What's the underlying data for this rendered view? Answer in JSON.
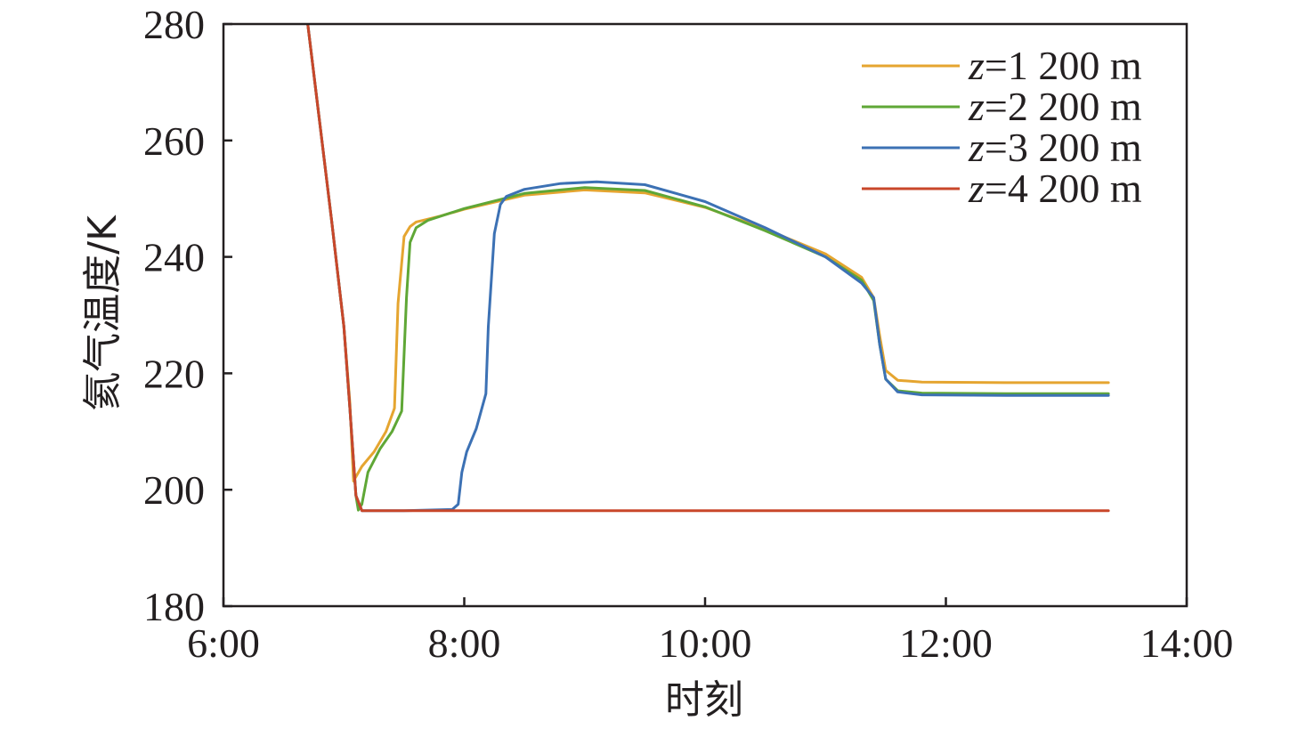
{
  "chart_data": {
    "type": "line",
    "xlabel": "时刻",
    "ylabel": "氦气温度/K",
    "xlim": [
      6,
      14
    ],
    "ylim": [
      180,
      280
    ],
    "x_ticks": [
      6,
      8,
      10,
      12,
      14
    ],
    "x_tick_labels": [
      "6:00",
      "8:00",
      "10:00",
      "12:00",
      "14:00"
    ],
    "y_ticks": [
      180,
      200,
      220,
      240,
      260,
      280
    ],
    "y_tick_labels": [
      "180",
      "200",
      "220",
      "240",
      "260",
      "280"
    ],
    "grid": false,
    "legend_position": "top-right",
    "series": [
      {
        "name_var": "z",
        "name_rest": "=1 200 m",
        "color": "#e5a530",
        "x": [
          6.7,
          6.8,
          6.9,
          7.0,
          7.05,
          7.08,
          7.15,
          7.25,
          7.35,
          7.42,
          7.45,
          7.5,
          7.55,
          7.6,
          7.8,
          8.0,
          8.5,
          9.0,
          9.5,
          10.0,
          10.5,
          11.0,
          11.3,
          11.4,
          11.45,
          11.5,
          11.6,
          11.8,
          12.5,
          13.35
        ],
        "y": [
          280,
          263,
          246,
          228,
          215,
          201.5,
          204,
          206.5,
          210,
          214,
          232,
          243.5,
          245.2,
          246,
          247,
          248.2,
          250.6,
          251.5,
          251,
          248.5,
          244.8,
          240.5,
          236.5,
          233,
          226.5,
          220.5,
          218.8,
          218.5,
          218.4,
          218.4
        ]
      },
      {
        "name_var": "z",
        "name_rest": "=2 200 m",
        "color": "#5fa736",
        "x": [
          6.7,
          6.8,
          6.9,
          7.0,
          7.05,
          7.1,
          7.12,
          7.15,
          7.2,
          7.3,
          7.4,
          7.48,
          7.52,
          7.55,
          7.6,
          7.7,
          8.0,
          8.5,
          9.0,
          9.5,
          10.0,
          10.5,
          11.0,
          11.3,
          11.4,
          11.45,
          11.5,
          11.6,
          11.8,
          12.5,
          13.35
        ],
        "y": [
          280,
          263,
          246,
          228,
          214,
          199,
          196.5,
          197.5,
          203,
          207,
          210,
          213.5,
          233,
          242.5,
          245,
          246.3,
          248.3,
          250.9,
          251.9,
          251.4,
          248.6,
          244.5,
          240,
          236,
          232.5,
          225,
          219,
          217,
          216.6,
          216.5,
          216.5
        ]
      },
      {
        "name_var": "z",
        "name_rest": "=3 200 m",
        "color": "#3c71b4",
        "x": [
          6.7,
          6.8,
          6.9,
          7.0,
          7.05,
          7.1,
          7.15,
          7.5,
          7.9,
          7.95,
          7.98,
          8.02,
          8.1,
          8.18,
          8.2,
          8.25,
          8.3,
          8.35,
          8.5,
          8.8,
          9.1,
          9.5,
          10.0,
          10.5,
          11.0,
          11.3,
          11.4,
          11.45,
          11.5,
          11.6,
          11.8,
          12.5,
          13.35
        ],
        "y": [
          280,
          263,
          246,
          228,
          214,
          199,
          196.4,
          196.4,
          196.6,
          197.5,
          203,
          206.5,
          210.5,
          216.5,
          228,
          244,
          249,
          250.4,
          251.6,
          252.6,
          252.9,
          252.4,
          249.5,
          245,
          240,
          235.5,
          233,
          225,
          219,
          216.8,
          216.3,
          216.2,
          216.2
        ]
      },
      {
        "name_var": "z",
        "name_rest": "=4 200 m",
        "color": "#c9472a",
        "x": [
          6.7,
          6.8,
          6.9,
          7.0,
          7.05,
          7.1,
          7.15,
          8.0,
          9.0,
          10.0,
          11.0,
          12.0,
          13.35
        ],
        "y": [
          280,
          263,
          246,
          228,
          214,
          199,
          196.4,
          196.4,
          196.4,
          196.4,
          196.4,
          196.4,
          196.4
        ]
      }
    ]
  }
}
